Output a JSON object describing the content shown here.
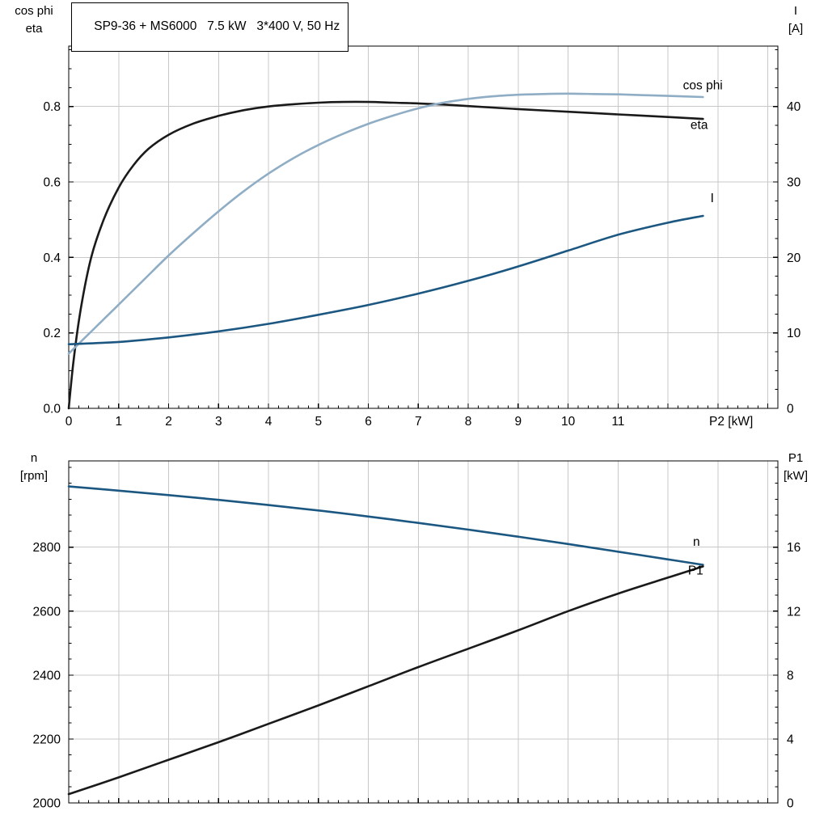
{
  "colors": {
    "black": "#1a1a1a",
    "dark_blue": "#1b5781",
    "light_blue": "#8fadc4",
    "grid": "#c8c8c8",
    "axis": "#000000",
    "background": "#ffffff"
  },
  "chart_data": [
    {
      "id": "top",
      "type": "line",
      "title": "SP9-36 + MS6000   7.5 kW   3*400 V, 50 Hz",
      "x_axis": {
        "label": "P2 [kW]",
        "range": [
          0,
          14.2
        ],
        "grid_max": 14,
        "labeled_ticks": [
          0,
          1,
          2,
          3,
          4,
          5,
          6,
          7,
          8,
          9,
          10,
          11
        ],
        "tick_labels": [
          "0",
          "1",
          "2",
          "3",
          "4",
          "5",
          "6",
          "7",
          "8",
          "9",
          "10",
          "11"
        ],
        "minor_step": 0.2
      },
      "left_axis": {
        "corner": [
          "cos phi",
          "eta"
        ],
        "range": [
          0,
          0.96
        ],
        "ticks": [
          0,
          0.2,
          0.4,
          0.6,
          0.8
        ],
        "tick_labels": [
          "0.0",
          "0.2",
          "0.4",
          "0.6",
          "0.8"
        ],
        "minor_step": 0.05
      },
      "right_axis": {
        "corner": [
          "I",
          "[A]"
        ],
        "range": [
          0,
          48
        ],
        "ticks": [
          0,
          10,
          20,
          30,
          40
        ],
        "tick_labels": [
          "0",
          "10",
          "20",
          "30",
          "40"
        ],
        "minor_step": 2.5
      },
      "series": [
        {
          "name": "eta",
          "axis": "left",
          "color_key": "black",
          "label": "eta",
          "label_pos": [
            12.45,
            0.74
          ],
          "x": [
            0,
            0.1,
            0.25,
            0.45,
            0.7,
            1.0,
            1.3,
            1.6,
            2.0,
            2.5,
            3.0,
            3.5,
            4.0,
            4.5,
            5.0,
            5.5,
            6.0,
            6.5,
            7.0,
            7.5,
            8.0,
            9.0,
            10.0,
            11.0,
            12.0,
            12.7
          ],
          "y": [
            0,
            0.13,
            0.27,
            0.4,
            0.5,
            0.585,
            0.645,
            0.688,
            0.725,
            0.755,
            0.775,
            0.79,
            0.8,
            0.806,
            0.81,
            0.812,
            0.812,
            0.81,
            0.808,
            0.805,
            0.801,
            0.793,
            0.786,
            0.779,
            0.772,
            0.767
          ]
        },
        {
          "name": "cos phi",
          "axis": "left",
          "color_key": "light_blue",
          "label": "cos phi",
          "label_pos": [
            12.3,
            0.845
          ],
          "x": [
            0,
            0.5,
            1.0,
            1.5,
            2.0,
            2.5,
            3.0,
            3.5,
            4.0,
            4.5,
            5.0,
            5.5,
            6.0,
            6.5,
            7.0,
            7.5,
            8.0,
            8.5,
            9.0,
            9.5,
            10.0,
            10.5,
            11.0,
            11.5,
            12.0,
            12.7
          ],
          "y": [
            0.145,
            0.21,
            0.275,
            0.34,
            0.405,
            0.465,
            0.522,
            0.575,
            0.622,
            0.663,
            0.698,
            0.728,
            0.754,
            0.776,
            0.795,
            0.81,
            0.82,
            0.827,
            0.831,
            0.833,
            0.834,
            0.833,
            0.832,
            0.83,
            0.828,
            0.825
          ]
        },
        {
          "name": "I",
          "axis": "right",
          "color_key": "dark_blue",
          "label": "I",
          "label_pos": [
            12.85,
            27.3
          ],
          "x": [
            0,
            1,
            2,
            3,
            4,
            5,
            6,
            7,
            8,
            9,
            10,
            11,
            12,
            12.7
          ],
          "y": [
            8.5,
            8.8,
            9.4,
            10.2,
            11.2,
            12.4,
            13.7,
            15.2,
            16.9,
            18.8,
            20.9,
            23.0,
            24.6,
            25.5
          ]
        }
      ]
    },
    {
      "id": "bottom",
      "type": "line",
      "title": "",
      "x_axis": {
        "label": "",
        "range": [
          0,
          14.2
        ],
        "grid_max": 14,
        "labeled_ticks": [],
        "tick_labels": [],
        "minor_step": 0.2
      },
      "left_axis": {
        "corner": [
          "n",
          "[rpm]"
        ],
        "range": [
          2000,
          3070
        ],
        "ticks": [
          2000,
          2200,
          2400,
          2600,
          2800
        ],
        "tick_labels": [
          "2000",
          "2200",
          "2400",
          "2600",
          "2800"
        ],
        "minor_step": 50
      },
      "right_axis": {
        "corner": [
          "P1",
          "[kW]"
        ],
        "range": [
          0,
          21.4
        ],
        "ticks": [
          0,
          4,
          8,
          12,
          16
        ],
        "tick_labels": [
          "0",
          "4",
          "8",
          "12",
          "16"
        ],
        "minor_step": 1
      },
      "series": [
        {
          "name": "n",
          "axis": "left",
          "color_key": "dark_blue",
          "label": "n",
          "label_pos": [
            12.5,
            2805
          ],
          "x": [
            0,
            1,
            2,
            3,
            4,
            5,
            6,
            7,
            8,
            9,
            10,
            11,
            12,
            12.7
          ],
          "y": [
            2990,
            2977,
            2963,
            2948,
            2932,
            2915,
            2896,
            2876,
            2855,
            2833,
            2810,
            2786,
            2762,
            2745
          ]
        },
        {
          "name": "P1",
          "axis": "right",
          "color_key": "black",
          "label": "P1",
          "label_pos": [
            12.4,
            14.3
          ],
          "x": [
            0,
            1,
            2,
            3,
            4,
            5,
            6,
            7,
            8,
            9,
            10,
            11,
            12,
            12.7
          ],
          "y": [
            0.55,
            1.6,
            2.7,
            3.8,
            4.95,
            6.1,
            7.3,
            8.5,
            9.65,
            10.8,
            12.0,
            13.1,
            14.1,
            14.8
          ]
        }
      ]
    }
  ]
}
